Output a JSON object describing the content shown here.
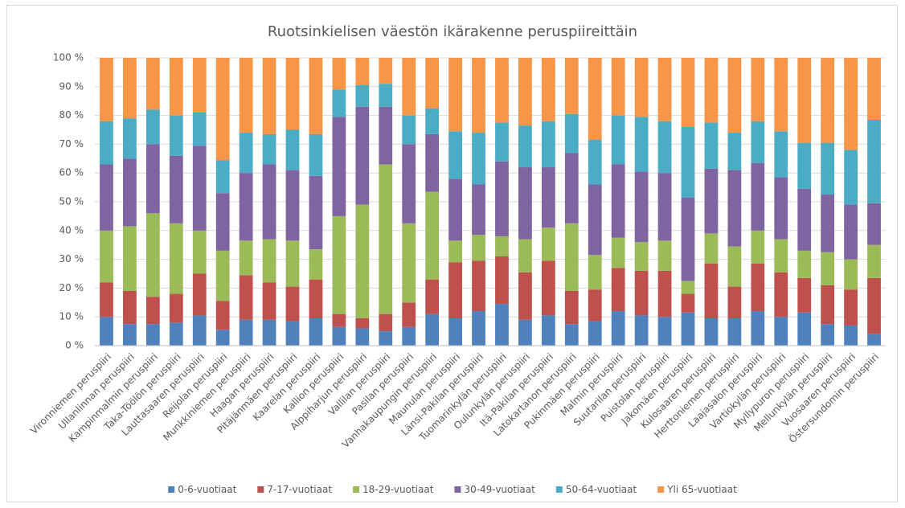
{
  "chart_data": {
    "type": "stacked_bar_100",
    "title": "Ruotsinkielisen väestön ikärakenne peruspiireittäin",
    "categories": [
      "Vironniemen peruspiiri",
      "Ullanlinnan peruspiiri",
      "Kampinmalmin peruspiiri",
      "Taka-Töölön peruspiiri",
      "Lauttasaaren peruspiiri",
      "Reijolan peruspiiri",
      "Munkkiniemen peruspiiri",
      "Haagan peruspiiri",
      "Pitäjänmäen peruspiiri",
      "Kaarelan peruspiiri",
      "Kallion peruspiiri",
      "Alppiharjun peruspiiri",
      "Vallilan peruspiiri",
      "Pasilan peruspiiri",
      "Vanhakaupungin peruspiiri",
      "Maunulan peruspiiri",
      "Länsi-Pakilan peruspiiri",
      "Tuomarinkylän peruspiiri",
      "Oulunkylän peruspiiri",
      "Itä-Pakilan peruspiiri",
      "Latokartanon peruspiiri",
      "Pukinmäen peruspiiri",
      "Malmin peruspiiri",
      "Suutarilan peruspiiri",
      "Puistolan peruspiiri",
      "Jakomäen peruspiiri",
      "Kulosaaren peruspiiri",
      "Herttoniemen peruspiiri",
      "Laajasalon peruspiiri",
      "Vartiokylän peruspiiri",
      "Myllypuron peruspiiri",
      "Mellunkylän peruspiiri",
      "Vuosaaren peruspiiri",
      "Östersundomin peruspiiri"
    ],
    "series": [
      {
        "name": "0-6-vuotiaat",
        "color": "#4f81bd",
        "values": [
          10,
          7.5,
          7.5,
          8,
          10.5,
          5.5,
          9,
          9,
          8.5,
          9.5,
          6.5,
          6,
          5,
          6.5,
          11,
          9.5,
          12,
          14.5,
          9,
          10.5,
          7.5,
          8.5,
          12,
          10.5,
          10,
          11.5,
          9.5,
          9.5,
          12,
          10,
          11.5,
          7.5,
          7,
          4
        ]
      },
      {
        "name": "7-17-vuotiaat",
        "color": "#c0504d",
        "values": [
          12,
          11.5,
          9.5,
          10,
          14.5,
          10,
          15.5,
          13,
          12,
          13.5,
          4.5,
          3.5,
          6,
          8.5,
          12,
          19.5,
          17.5,
          16.5,
          16.5,
          19,
          11.5,
          11,
          15,
          15.5,
          16,
          6.5,
          19,
          11,
          16.5,
          15.5,
          12,
          13.5,
          12.5,
          19.5
        ]
      },
      {
        "name": "18-29-vuotiaat",
        "color": "#9bbb59",
        "values": [
          18,
          22.5,
          29,
          24.5,
          15,
          17.5,
          12,
          15,
          16,
          10.5,
          34,
          39.5,
          52,
          27.5,
          30.5,
          7.5,
          9,
          7,
          11.5,
          11.5,
          23.5,
          12,
          10.5,
          10,
          10.5,
          4.5,
          10.5,
          14,
          11.5,
          11.5,
          9.5,
          11.5,
          10.5,
          11.5
        ]
      },
      {
        "name": "30-49-vuotiaat",
        "color": "#8064a2",
        "values": [
          23,
          23.5,
          24,
          23.5,
          29.5,
          20,
          23.5,
          26,
          24.5,
          25.5,
          34.5,
          34,
          20,
          27.5,
          20,
          21.5,
          17.5,
          26,
          25,
          21,
          24.5,
          24.5,
          25.5,
          24.5,
          23.5,
          29,
          22.5,
          26.5,
          23.5,
          21.5,
          21.5,
          20,
          19,
          14.5
        ]
      },
      {
        "name": "50-64-vuotiaat",
        "color": "#4bacc6",
        "values": [
          15,
          14,
          12,
          14,
          11.5,
          11.5,
          14,
          10.5,
          14,
          14.5,
          9.5,
          7.5,
          8,
          10,
          9,
          16.5,
          18,
          13.5,
          14.5,
          16,
          13.5,
          15.5,
          17,
          19,
          18,
          24.5,
          16,
          13,
          14.5,
          16,
          16,
          18,
          19,
          29
        ]
      },
      {
        "name": "Yli 65-vuotiaat",
        "color": "#f79646",
        "values": [
          22,
          21,
          18,
          20,
          19,
          35.5,
          26,
          26.5,
          25,
          26.5,
          11,
          9.5,
          9,
          20,
          17.5,
          25.5,
          26,
          22.5,
          23.5,
          22,
          19.5,
          28.5,
          20,
          20.5,
          22,
          24,
          22.5,
          26,
          22,
          25.5,
          29.5,
          29.5,
          32,
          21.5
        ]
      }
    ],
    "ylim": [
      0,
      100
    ],
    "yticks": [
      {
        "value": 0,
        "label": "0 %"
      },
      {
        "value": 10,
        "label": "10 %"
      },
      {
        "value": 20,
        "label": "20 %"
      },
      {
        "value": 30,
        "label": "30 %"
      },
      {
        "value": 40,
        "label": "40 %"
      },
      {
        "value": 50,
        "label": "50 %"
      },
      {
        "value": 60,
        "label": "60 %"
      },
      {
        "value": 70,
        "label": "70 %"
      },
      {
        "value": 80,
        "label": "80 %"
      },
      {
        "value": 90,
        "label": "90 %"
      },
      {
        "value": 100,
        "label": "100 %"
      }
    ],
    "grid": true,
    "legend": "bottom"
  }
}
